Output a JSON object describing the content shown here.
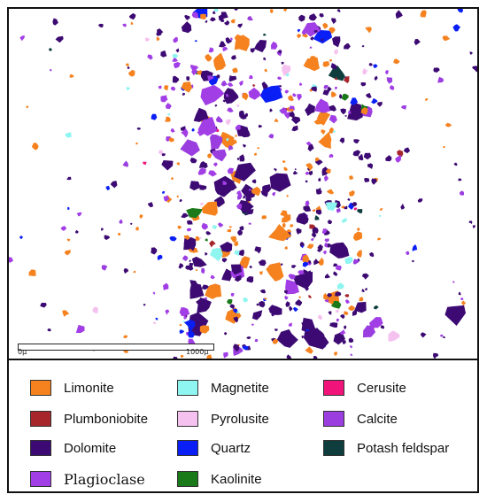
{
  "scale_bar": {
    "start_label": "0µ",
    "end_label": "1000µ"
  },
  "legend": [
    {
      "label": "Limonite",
      "color": "#f5821f"
    },
    {
      "label": "Plumboniobite",
      "color": "#a6262c"
    },
    {
      "label": "Dolomite",
      "color": "#3d0a73"
    },
    {
      "label": "Plagioclase",
      "color": "#a23ee6"
    },
    {
      "label": "Magnetite",
      "color": "#8ff5f0"
    },
    {
      "label": "Pyrolusite",
      "color": "#f5c2f0"
    },
    {
      "label": "Quartz",
      "color": "#0a1ff5"
    },
    {
      "label": "Kaolinite",
      "color": "#1a7a1a"
    },
    {
      "label": "Cerusite",
      "color": "#f0147a"
    },
    {
      "label": "Calcite",
      "color": "#9a3ee0"
    },
    {
      "label": "Potash feldspar",
      "color": "#0f3d3d"
    }
  ]
}
